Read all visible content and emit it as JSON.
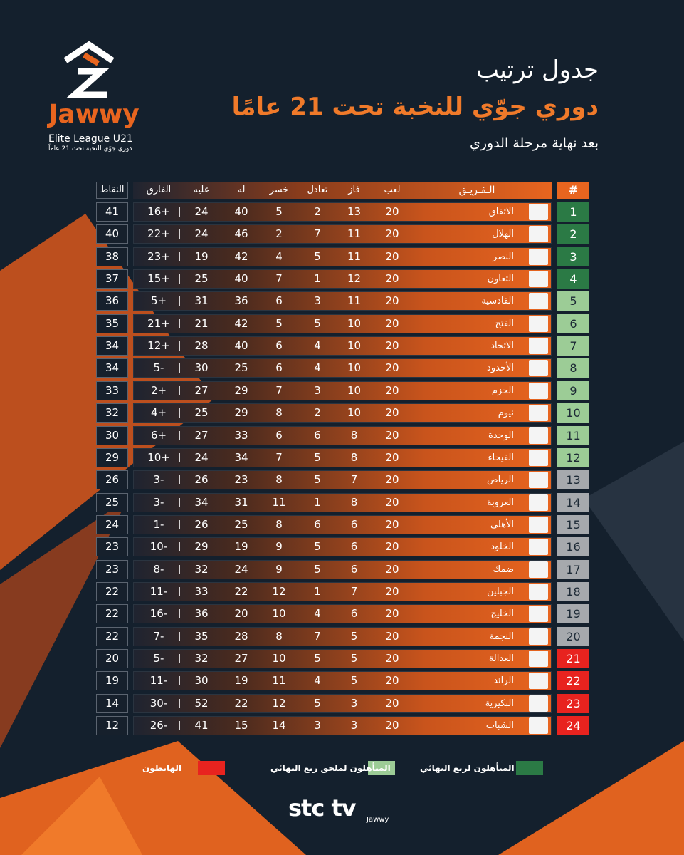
{
  "brand": {
    "name": "Jawwy",
    "league": "Elite League U21",
    "subtitle": "دوري جوّي للنخبة تحت 21 عاماً"
  },
  "header": {
    "title": "جدول ترتيب",
    "subtitle": "دوري جوّي للنخبة تحت 21 عامًا",
    "stage": "بعد نهاية مرحلة الدوري"
  },
  "table": {
    "columns": {
      "rank": "#",
      "team": "الـفـريـق",
      "played": "لعب",
      "won": "فاز",
      "drawn": "تعادل",
      "lost": "خسر",
      "for": "له",
      "against": "عليه",
      "diff": "الفارق",
      "points": "النقاط"
    },
    "rows": [
      {
        "rank": 1,
        "team": "الاتفاق",
        "played": 20,
        "won": 13,
        "drawn": 2,
        "lost": 5,
        "for": 40,
        "against": 24,
        "diff": "16+",
        "points": 41,
        "color": "#2b7a45"
      },
      {
        "rank": 2,
        "team": "الهلال",
        "played": 20,
        "won": 11,
        "drawn": 7,
        "lost": 2,
        "for": 46,
        "against": 24,
        "diff": "22+",
        "points": 40,
        "color": "#2b7a45"
      },
      {
        "rank": 3,
        "team": "النصر",
        "played": 20,
        "won": 11,
        "drawn": 5,
        "lost": 4,
        "for": 42,
        "against": 19,
        "diff": "23+",
        "points": 38,
        "color": "#2b7a45"
      },
      {
        "rank": 4,
        "team": "التعاون",
        "played": 20,
        "won": 12,
        "drawn": 1,
        "lost": 7,
        "for": 40,
        "against": 25,
        "diff": "15+",
        "points": 37,
        "color": "#2b7a45"
      },
      {
        "rank": 5,
        "team": "القادسية",
        "played": 20,
        "won": 11,
        "drawn": 3,
        "lost": 6,
        "for": 36,
        "against": 31,
        "diff": "5+",
        "points": 36,
        "color": "#9ccc96"
      },
      {
        "rank": 6,
        "team": "الفتح",
        "played": 20,
        "won": 10,
        "drawn": 5,
        "lost": 5,
        "for": 42,
        "against": 21,
        "diff": "21+",
        "points": 35,
        "color": "#9ccc96"
      },
      {
        "rank": 7,
        "team": "الاتحاد",
        "played": 20,
        "won": 10,
        "drawn": 4,
        "lost": 6,
        "for": 40,
        "against": 28,
        "diff": "12+",
        "points": 34,
        "color": "#9ccc96"
      },
      {
        "rank": 8,
        "team": "الأخدود",
        "played": 20,
        "won": 10,
        "drawn": 4,
        "lost": 6,
        "for": 25,
        "against": 30,
        "diff": "5-",
        "points": 34,
        "color": "#9ccc96"
      },
      {
        "rank": 9,
        "team": "الحزم",
        "played": 20,
        "won": 10,
        "drawn": 3,
        "lost": 7,
        "for": 29,
        "against": 27,
        "diff": "2+",
        "points": 33,
        "color": "#9ccc96"
      },
      {
        "rank": 10,
        "team": "نيوم",
        "played": 20,
        "won": 10,
        "drawn": 2,
        "lost": 8,
        "for": 29,
        "against": 25,
        "diff": "4+",
        "points": 32,
        "color": "#9ccc96"
      },
      {
        "rank": 11,
        "team": "الوحدة",
        "played": 20,
        "won": 8,
        "drawn": 6,
        "lost": 6,
        "for": 33,
        "against": 27,
        "diff": "6+",
        "points": 30,
        "color": "#9ccc96"
      },
      {
        "rank": 12,
        "team": "الفيحاء",
        "played": 20,
        "won": 8,
        "drawn": 5,
        "lost": 7,
        "for": 34,
        "against": 24,
        "diff": "10+",
        "points": 29,
        "color": "#9ccc96"
      },
      {
        "rank": 13,
        "team": "الرياض",
        "played": 20,
        "won": 7,
        "drawn": 5,
        "lost": 8,
        "for": 23,
        "against": 26,
        "diff": "3-",
        "points": 26,
        "color": "#a6a9ad"
      },
      {
        "rank": 14,
        "team": "العروبة",
        "played": 20,
        "won": 8,
        "drawn": 1,
        "lost": 11,
        "for": 31,
        "against": 34,
        "diff": "3-",
        "points": 25,
        "color": "#a6a9ad"
      },
      {
        "rank": 15,
        "team": "الأهلي",
        "played": 20,
        "won": 6,
        "drawn": 6,
        "lost": 8,
        "for": 25,
        "against": 26,
        "diff": "1-",
        "points": 24,
        "color": "#a6a9ad"
      },
      {
        "rank": 16,
        "team": "الخلود",
        "played": 20,
        "won": 6,
        "drawn": 5,
        "lost": 9,
        "for": 19,
        "against": 29,
        "diff": "10-",
        "points": 23,
        "color": "#a6a9ad"
      },
      {
        "rank": 17,
        "team": "ضمك",
        "played": 20,
        "won": 6,
        "drawn": 5,
        "lost": 9,
        "for": 24,
        "against": 32,
        "diff": "8-",
        "points": 23,
        "color": "#a6a9ad"
      },
      {
        "rank": 18,
        "team": "الجبلين",
        "played": 20,
        "won": 7,
        "drawn": 1,
        "lost": 12,
        "for": 22,
        "against": 33,
        "diff": "11-",
        "points": 22,
        "color": "#a6a9ad"
      },
      {
        "rank": 19,
        "team": "الخليج",
        "played": 20,
        "won": 6,
        "drawn": 4,
        "lost": 10,
        "for": 20,
        "against": 36,
        "diff": "16-",
        "points": 22,
        "color": "#a6a9ad"
      },
      {
        "rank": 20,
        "team": "النجمة",
        "played": 20,
        "won": 5,
        "drawn": 7,
        "lost": 8,
        "for": 28,
        "against": 35,
        "diff": "7-",
        "points": 22,
        "color": "#a6a9ad"
      },
      {
        "rank": 21,
        "team": "العدالة",
        "played": 20,
        "won": 5,
        "drawn": 5,
        "lost": 10,
        "for": 27,
        "against": 32,
        "diff": "5-",
        "points": 20,
        "color": "#e8231f"
      },
      {
        "rank": 22,
        "team": "الرائد",
        "played": 20,
        "won": 5,
        "drawn": 4,
        "lost": 11,
        "for": 19,
        "against": 30,
        "diff": "11-",
        "points": 19,
        "color": "#e8231f"
      },
      {
        "rank": 23,
        "team": "البكيرية",
        "played": 20,
        "won": 3,
        "drawn": 5,
        "lost": 12,
        "for": 22,
        "against": 52,
        "diff": "30-",
        "points": 14,
        "color": "#e8231f"
      },
      {
        "rank": 24,
        "team": "الشباب",
        "played": 20,
        "won": 3,
        "drawn": 3,
        "lost": 14,
        "for": 15,
        "against": 41,
        "diff": "26-",
        "points": 12,
        "color": "#e8231f"
      }
    ]
  },
  "legend": [
    {
      "label": "المتأهلون لربع النهائي",
      "color": "#2b7a45"
    },
    {
      "label": "المتأهلون لملحق ربع النهائي",
      "color": "#9ccc96"
    },
    {
      "label": "الهابطون",
      "color": "#e8231f"
    }
  ],
  "footer": {
    "stc": "stc tv",
    "jawwy": "Jawwy"
  }
}
